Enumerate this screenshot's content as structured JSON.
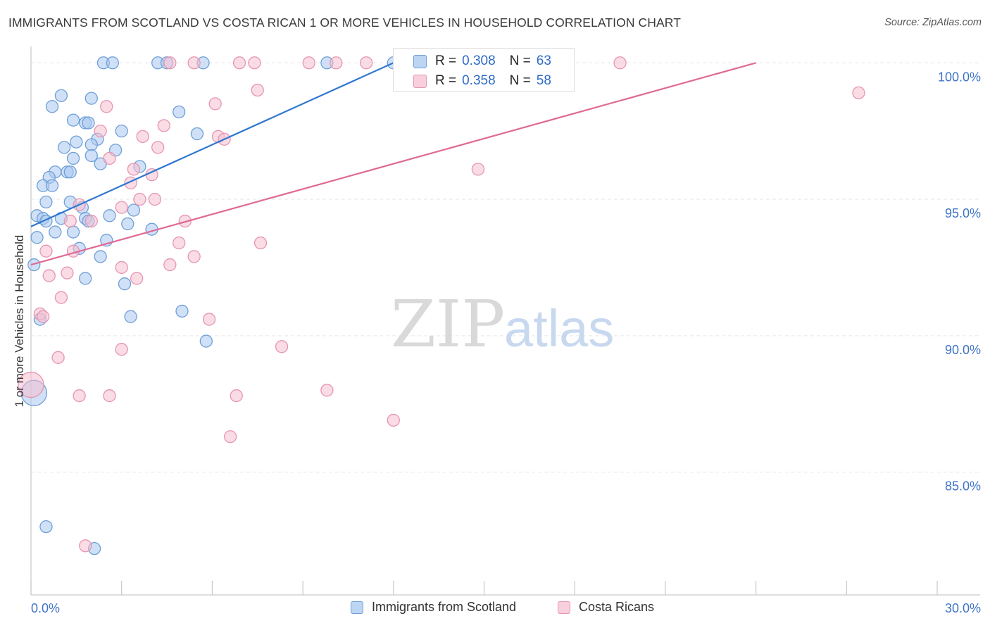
{
  "title": "IMMIGRANTS FROM SCOTLAND VS COSTA RICAN 1 OR MORE VEHICLES IN HOUSEHOLD CORRELATION CHART",
  "source": "Source: ZipAtlas.com",
  "watermark": {
    "zip": "ZIP",
    "atlas": "atlas"
  },
  "colors": {
    "blue": "#2f77d0",
    "blue_fill": "#a9c8f0",
    "blue_stroke": "#6f9fd8",
    "pink": "#e06a94",
    "pink_fill": "#f5bfd0",
    "pink_stroke": "#e695b2",
    "axis_text": "#3f74c6",
    "grid": "#e6e6e6"
  },
  "stats": {
    "blue": {
      "r_label": "R =",
      "r_value": "0.308",
      "n_label": "N =",
      "n_value": "63"
    },
    "pink": {
      "r_label": "R =",
      "r_value": "0.358",
      "n_label": "N =",
      "n_value": "58"
    }
  },
  "chart_data": {
    "type": "scatter",
    "title": "IMMIGRANTS FROM SCOTLAND VS COSTA RICAN 1 OR MORE VEHICLES IN HOUSEHOLD CORRELATION CHART",
    "xlabel": "",
    "ylabel": "1 or more Vehicles in Household",
    "xlim": [
      0,
      30
    ],
    "ylim": [
      80.5,
      100.6
    ],
    "x_tick_labels": [
      "0.0%",
      "30.0%"
    ],
    "y_ticks": [
      85,
      90,
      95,
      100
    ],
    "y_tick_labels": [
      "85.0%",
      "90.0%",
      "95.0%",
      "100.0%"
    ],
    "grid": true,
    "legend_position": "bottom-center",
    "series": [
      {
        "name": "Immigrants from Scotland",
        "color": "blue",
        "trend": {
          "x": [
            0,
            12.0
          ],
          "y": [
            94.0,
            100.0
          ]
        },
        "points": [
          [
            2.4,
            100.0
          ],
          [
            2.7,
            100.0
          ],
          [
            4.2,
            100.0
          ],
          [
            4.5,
            100.0
          ],
          [
            5.7,
            100.0
          ],
          [
            9.8,
            100.0
          ],
          [
            12.0,
            100.0
          ],
          [
            1.0,
            98.8
          ],
          [
            2.0,
            98.7
          ],
          [
            0.7,
            98.4
          ],
          [
            4.9,
            98.2
          ],
          [
            1.4,
            97.9
          ],
          [
            1.8,
            97.8
          ],
          [
            1.9,
            97.8
          ],
          [
            3.0,
            97.5
          ],
          [
            5.5,
            97.4
          ],
          [
            2.2,
            97.2
          ],
          [
            1.5,
            97.1
          ],
          [
            2.0,
            97.0
          ],
          [
            1.1,
            96.9
          ],
          [
            2.8,
            96.8
          ],
          [
            2.0,
            96.6
          ],
          [
            1.4,
            96.5
          ],
          [
            2.3,
            96.3
          ],
          [
            3.6,
            96.2
          ],
          [
            0.8,
            96.0
          ],
          [
            1.2,
            96.0
          ],
          [
            1.3,
            96.0
          ],
          [
            0.6,
            95.8
          ],
          [
            0.4,
            95.5
          ],
          [
            0.7,
            95.5
          ],
          [
            0.5,
            94.9
          ],
          [
            1.3,
            94.9
          ],
          [
            1.7,
            94.7
          ],
          [
            3.4,
            94.6
          ],
          [
            0.2,
            94.4
          ],
          [
            0.4,
            94.3
          ],
          [
            1.0,
            94.3
          ],
          [
            1.8,
            94.3
          ],
          [
            2.6,
            94.4
          ],
          [
            0.5,
            94.2
          ],
          [
            1.9,
            94.2
          ],
          [
            3.2,
            94.1
          ],
          [
            4.0,
            93.9
          ],
          [
            0.8,
            93.8
          ],
          [
            1.4,
            93.8
          ],
          [
            0.2,
            93.6
          ],
          [
            2.5,
            93.5
          ],
          [
            1.6,
            93.2
          ],
          [
            2.3,
            92.9
          ],
          [
            0.1,
            92.6
          ],
          [
            1.8,
            92.1
          ],
          [
            3.1,
            91.9
          ],
          [
            5.0,
            90.9
          ],
          [
            3.3,
            90.7
          ],
          [
            0.3,
            90.6
          ],
          [
            5.8,
            89.8
          ],
          [
            0.1,
            87.9
          ],
          [
            0.5,
            83.0
          ],
          [
            2.1,
            82.2
          ]
        ]
      },
      {
        "name": "Costa Ricans",
        "color": "pink",
        "trend": {
          "x": [
            0,
            24.0
          ],
          "y": [
            92.6,
            100.0
          ]
        },
        "points": [
          [
            4.6,
            100.0
          ],
          [
            5.4,
            100.0
          ],
          [
            6.9,
            100.0
          ],
          [
            7.4,
            100.0
          ],
          [
            9.2,
            100.0
          ],
          [
            10.1,
            100.0
          ],
          [
            11.1,
            100.0
          ],
          [
            15.0,
            100.0
          ],
          [
            19.5,
            100.0
          ],
          [
            7.5,
            99.0
          ],
          [
            27.4,
            98.9
          ],
          [
            6.1,
            98.5
          ],
          [
            2.5,
            98.4
          ],
          [
            4.4,
            97.7
          ],
          [
            2.3,
            97.5
          ],
          [
            3.7,
            97.3
          ],
          [
            6.2,
            97.3
          ],
          [
            6.4,
            97.2
          ],
          [
            4.2,
            96.9
          ],
          [
            3.4,
            96.1
          ],
          [
            4.0,
            95.9
          ],
          [
            3.3,
            95.6
          ],
          [
            14.8,
            96.1
          ],
          [
            2.6,
            96.5
          ],
          [
            3.6,
            95.0
          ],
          [
            4.1,
            95.0
          ],
          [
            3.0,
            94.7
          ],
          [
            1.6,
            94.8
          ],
          [
            5.1,
            94.2
          ],
          [
            1.3,
            94.2
          ],
          [
            2.0,
            94.2
          ],
          [
            7.6,
            93.4
          ],
          [
            4.9,
            93.4
          ],
          [
            0.5,
            93.1
          ],
          [
            1.4,
            93.1
          ],
          [
            5.4,
            92.9
          ],
          [
            4.6,
            92.6
          ],
          [
            3.0,
            92.5
          ],
          [
            1.2,
            92.3
          ],
          [
            0.6,
            92.2
          ],
          [
            3.5,
            92.1
          ],
          [
            1.0,
            91.4
          ],
          [
            0.3,
            90.8
          ],
          [
            0.4,
            90.7
          ],
          [
            5.9,
            90.6
          ],
          [
            8.3,
            89.6
          ],
          [
            3.0,
            89.5
          ],
          [
            0.9,
            89.2
          ],
          [
            0.0,
            88.2
          ],
          [
            9.8,
            88.0
          ],
          [
            1.6,
            87.8
          ],
          [
            2.6,
            87.8
          ],
          [
            6.8,
            87.8
          ],
          [
            12.0,
            86.9
          ],
          [
            6.6,
            86.3
          ],
          [
            1.8,
            82.3
          ]
        ]
      }
    ]
  }
}
